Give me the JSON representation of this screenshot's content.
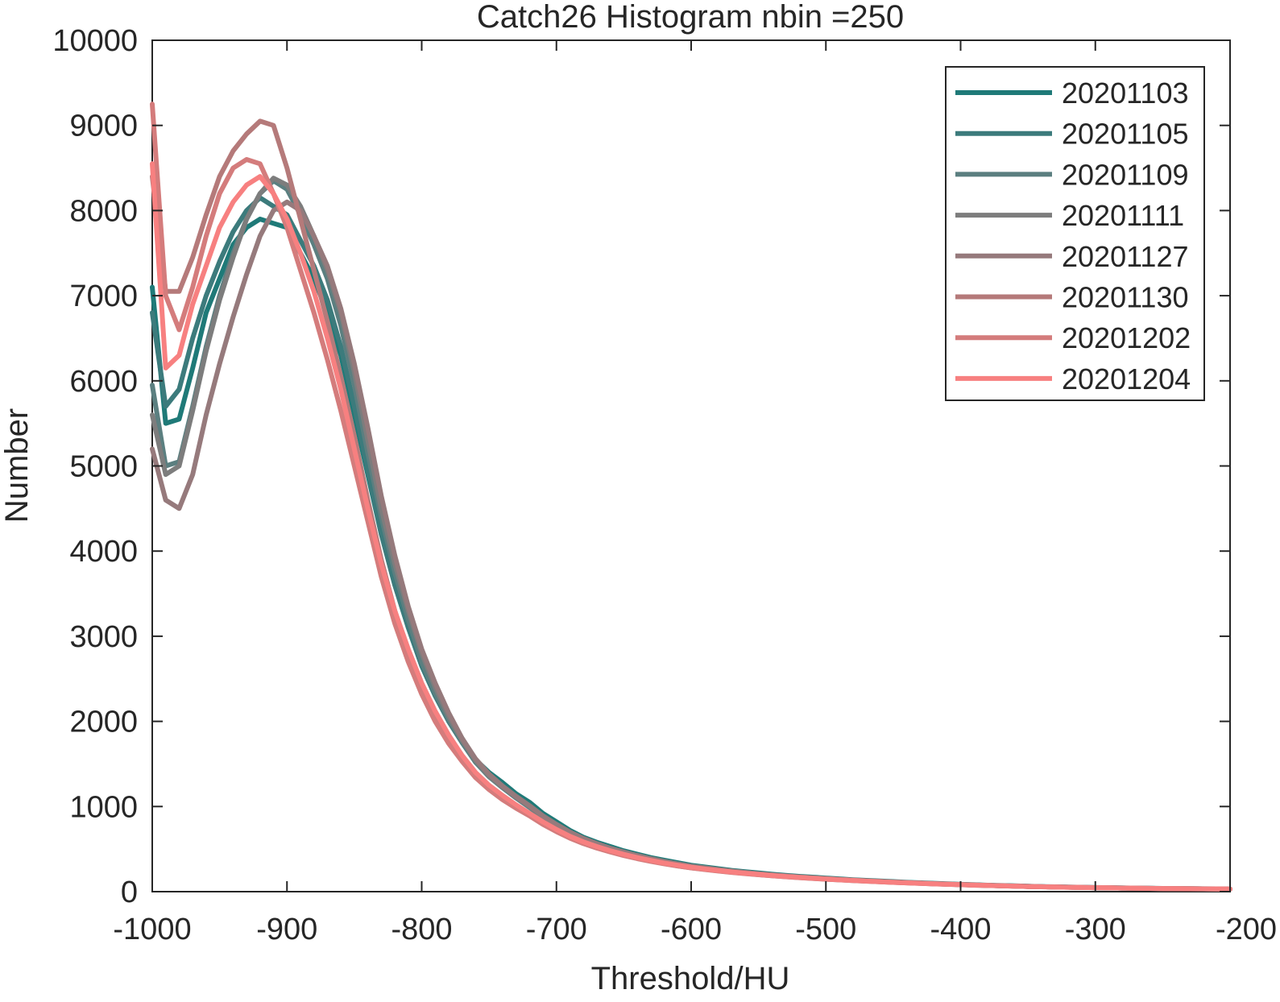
{
  "chart_data": {
    "type": "line",
    "title": "Catch26  Histogram nbin =250",
    "xlabel": "Threshold/HU",
    "ylabel": "Number",
    "xlim": [
      -1000,
      -200
    ],
    "ylim": [
      0,
      10000
    ],
    "xticks": [
      -1000,
      -900,
      -800,
      -700,
      -600,
      -500,
      -400,
      -300,
      -200
    ],
    "yticks": [
      0,
      1000,
      2000,
      3000,
      4000,
      5000,
      6000,
      7000,
      8000,
      9000,
      10000
    ],
    "xtick_labels": [
      "-1000",
      "-900",
      "-800",
      "-700",
      "-600",
      "-500",
      "-400",
      "-300",
      "-200"
    ],
    "ytick_labels": [
      "0",
      "1000",
      "2000",
      "3000",
      "4000",
      "5000",
      "6000",
      "7000",
      "8000",
      "9000",
      "10000"
    ],
    "grid": false,
    "legend_position": "top-right",
    "x": [
      -1000,
      -990,
      -980,
      -970,
      -960,
      -950,
      -940,
      -930,
      -920,
      -910,
      -900,
      -890,
      -880,
      -870,
      -860,
      -850,
      -840,
      -830,
      -820,
      -810,
      -800,
      -790,
      -780,
      -770,
      -760,
      -750,
      -740,
      -730,
      -720,
      -710,
      -700,
      -690,
      -680,
      -670,
      -660,
      -650,
      -640,
      -630,
      -620,
      -610,
      -600,
      -590,
      -580,
      -570,
      -560,
      -550,
      -540,
      -530,
      -520,
      -510,
      -500,
      -490,
      -480,
      -470,
      -460,
      -450,
      -440,
      -430,
      -420,
      -410,
      -400,
      -390,
      -380,
      -370,
      -360,
      -350,
      -340,
      -330,
      -320,
      -310,
      -300,
      -290,
      -280,
      -270,
      -260,
      -250,
      -240,
      -230,
      -220,
      -210,
      -200
    ],
    "series": [
      {
        "name": "20201103",
        "color": "#1f7a78",
        "values": [
          7100,
          5500,
          5550,
          6150,
          6800,
          7200,
          7600,
          7800,
          7900,
          7850,
          7800,
          7500,
          7200,
          6800,
          6300,
          5600,
          4900,
          4200,
          3650,
          3150,
          2700,
          2350,
          2050,
          1800,
          1550,
          1400,
          1280,
          1150,
          1050,
          920,
          820,
          720,
          640,
          580,
          530,
          480,
          440,
          400,
          370,
          340,
          310,
          290,
          270,
          250,
          235,
          220,
          205,
          192,
          180,
          170,
          160,
          150,
          140,
          132,
          125,
          118,
          110,
          104,
          98,
          92,
          86,
          81,
          76,
          72,
          68,
          64,
          60,
          57,
          54,
          51,
          48,
          46,
          44,
          42,
          40,
          38,
          36,
          35,
          34,
          33,
          32
        ]
      },
      {
        "name": "20201105",
        "color": "#3c7b7c",
        "values": [
          6800,
          5700,
          5900,
          6500,
          7000,
          7400,
          7750,
          8000,
          8150,
          8050,
          7950,
          7650,
          7350,
          6950,
          6400,
          5700,
          4950,
          4200,
          3600,
          3100,
          2650,
          2300,
          2000,
          1750,
          1520,
          1360,
          1230,
          1110,
          1000,
          880,
          780,
          690,
          620,
          560,
          510,
          460,
          420,
          385,
          355,
          325,
          300,
          280,
          260,
          242,
          228,
          212,
          198,
          185,
          174,
          164,
          154,
          145,
          136,
          128,
          121,
          114,
          107,
          101,
          95,
          89,
          84,
          79,
          74,
          70,
          66,
          62,
          58,
          55,
          52,
          49,
          47,
          45,
          43,
          41,
          39,
          37,
          35,
          34,
          33,
          32,
          31
        ]
      },
      {
        "name": "20201109",
        "color": "#5b7f80",
        "values": [
          5950,
          5000,
          5050,
          5700,
          6400,
          7000,
          7500,
          7900,
          8200,
          8350,
          8250,
          7950,
          7600,
          7200,
          6650,
          5950,
          5150,
          4400,
          3750,
          3200,
          2700,
          2330,
          2020,
          1760,
          1520,
          1350,
          1220,
          1100,
          990,
          870,
          770,
          680,
          610,
          550,
          500,
          455,
          415,
          380,
          350,
          320,
          296,
          276,
          256,
          238,
          224,
          209,
          195,
          183,
          172,
          162,
          152,
          143,
          134,
          126,
          119,
          112,
          105,
          99,
          93,
          88,
          83,
          78,
          73,
          69,
          65,
          61,
          58,
          55,
          52,
          49,
          46,
          44,
          42,
          40,
          38,
          36,
          34,
          33,
          32,
          31,
          30
        ]
      },
      {
        "name": "20201111",
        "color": "#7d7d7d",
        "values": [
          5600,
          4900,
          5000,
          5650,
          6350,
          6950,
          7450,
          7900,
          8200,
          8380,
          8300,
          8050,
          7700,
          7300,
          6800,
          6100,
          5300,
          4500,
          3850,
          3300,
          2800,
          2400,
          2060,
          1780,
          1540,
          1360,
          1230,
          1110,
          1000,
          880,
          780,
          690,
          620,
          560,
          505,
          460,
          420,
          385,
          353,
          323,
          298,
          278,
          258,
          240,
          225,
          210,
          196,
          184,
          173,
          163,
          153,
          144,
          135,
          127,
          120,
          113,
          106,
          100,
          94,
          88,
          83,
          78,
          73,
          69,
          65,
          61,
          58,
          55,
          52,
          49,
          46,
          44,
          42,
          40,
          38,
          36,
          34,
          33,
          32,
          31,
          30
        ]
      },
      {
        "name": "20201127",
        "color": "#967a7c",
        "values": [
          5200,
          4600,
          4500,
          4900,
          5600,
          6200,
          6750,
          7250,
          7700,
          8000,
          8100,
          8000,
          7700,
          7350,
          6850,
          6200,
          5450,
          4650,
          3950,
          3350,
          2850,
          2450,
          2100,
          1800,
          1560,
          1380,
          1240,
          1120,
          1010,
          890,
          790,
          700,
          625,
          565,
          510,
          465,
          425,
          388,
          356,
          326,
          300,
          280,
          260,
          242,
          226,
          211,
          197,
          185,
          174,
          164,
          154,
          145,
          136,
          128,
          121,
          114,
          107,
          101,
          95,
          89,
          84,
          79,
          74,
          70,
          66,
          62,
          58,
          55,
          52,
          49,
          47,
          45,
          43,
          41,
          39,
          37,
          35,
          34,
          33,
          32,
          31
        ]
      },
      {
        "name": "20201130",
        "color": "#b57a7a",
        "values": [
          8400,
          7050,
          7050,
          7450,
          7950,
          8400,
          8700,
          8900,
          9050,
          9000,
          8500,
          7900,
          7300,
          6700,
          6050,
          5350,
          4600,
          3900,
          3300,
          2800,
          2400,
          2080,
          1800,
          1580,
          1380,
          1230,
          1110,
          1010,
          910,
          810,
          720,
          640,
          575,
          520,
          475,
          430,
          393,
          360,
          330,
          303,
          280,
          262,
          244,
          228,
          214,
          200,
          187,
          176,
          166,
          156,
          147,
          138,
          130,
          123,
          116,
          109,
          103,
          97,
          91,
          86,
          81,
          76,
          72,
          68,
          64,
          60,
          57,
          54,
          51,
          48,
          46,
          44,
          42,
          40,
          38,
          36,
          35,
          34,
          33,
          32,
          31
        ]
      },
      {
        "name": "20201202",
        "color": "#d47c7c",
        "values": [
          9250,
          7000,
          6600,
          7100,
          7700,
          8200,
          8500,
          8600,
          8550,
          8200,
          7800,
          7300,
          6800,
          6250,
          5650,
          5000,
          4350,
          3700,
          3150,
          2700,
          2320,
          2000,
          1740,
          1530,
          1340,
          1200,
          1080,
          980,
          890,
          790,
          705,
          628,
          565,
          512,
          466,
          424,
          388,
          356,
          327,
          301,
          279,
          260,
          242,
          226,
          212,
          199,
          186,
          175,
          165,
          155,
          146,
          138,
          130,
          123,
          116,
          109,
          103,
          97,
          91,
          86,
          81,
          76,
          72,
          68,
          64,
          60,
          57,
          54,
          51,
          48,
          46,
          44,
          42,
          40,
          38,
          36,
          35,
          34,
          33,
          32,
          31
        ]
      },
      {
        "name": "20201204",
        "color": "#f78080",
        "values": [
          8550,
          6150,
          6300,
          6900,
          7350,
          7800,
          8100,
          8300,
          8400,
          8200,
          7900,
          7500,
          7050,
          6500,
          5900,
          5200,
          4500,
          3850,
          3300,
          2850,
          2450,
          2120,
          1840,
          1600,
          1400,
          1250,
          1130,
          1020,
          920,
          820,
          730,
          650,
          585,
          530,
          482,
          438,
          400,
          367,
          337,
          310,
          287,
          267,
          249,
          232,
          217,
          203,
          190,
          179,
          168,
          158,
          149,
          140,
          132,
          124,
          117,
          110,
          104,
          98,
          92,
          87,
          82,
          77,
          73,
          69,
          65,
          61,
          58,
          55,
          52,
          49,
          47,
          45,
          43,
          41,
          39,
          37,
          35,
          34,
          33,
          32,
          31
        ]
      }
    ]
  }
}
